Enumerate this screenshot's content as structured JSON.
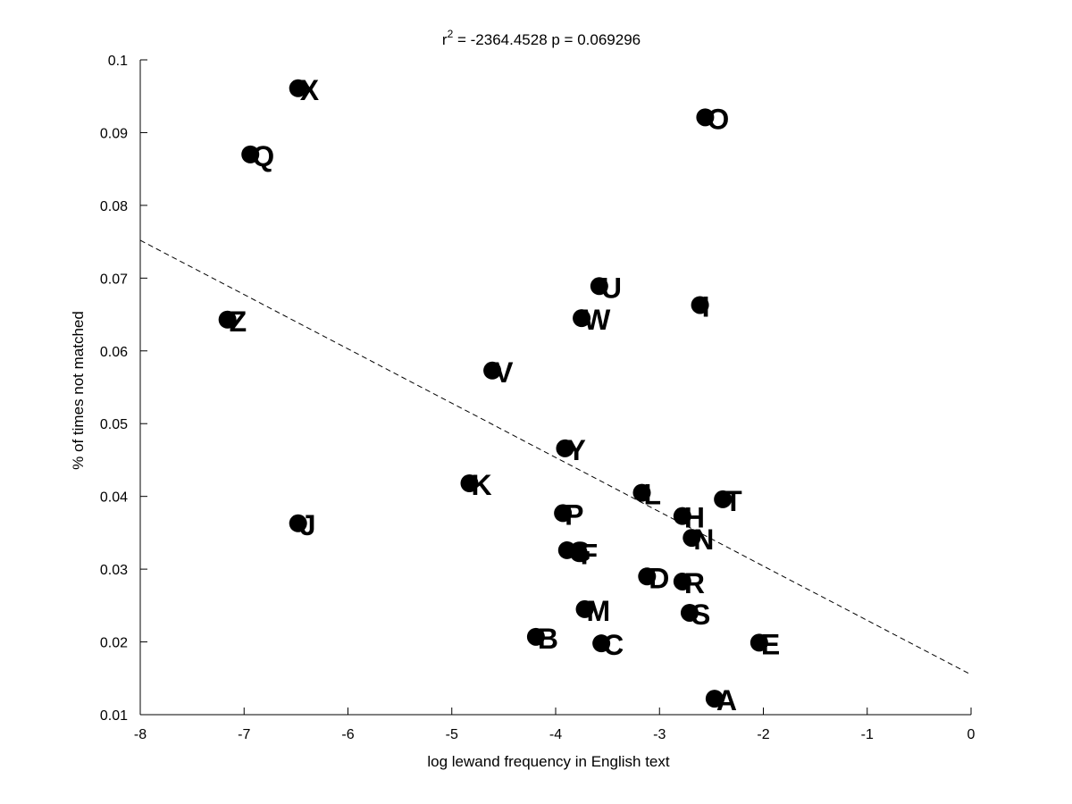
{
  "chart_data": {
    "type": "scatter",
    "title_main": "r",
    "title_sup": "2",
    "title_rest": " = -2364.4528 p = 0.069296",
    "xlabel": "log lewand frequency in English text",
    "ylabel": "% of times not matched",
    "xlim": [
      -8,
      0
    ],
    "ylim": [
      0.01,
      0.1
    ],
    "xticks": [
      -8,
      -7,
      -6,
      -5,
      -4,
      -3,
      -2,
      -1,
      0
    ],
    "xtick_labels": [
      "-8",
      "-7",
      "-6",
      "-5",
      "-4",
      "-3",
      "-2",
      "-1",
      "0"
    ],
    "yticks": [
      0.01,
      0.02,
      0.03,
      0.04,
      0.05,
      0.06,
      0.07,
      0.08,
      0.09,
      0.1
    ],
    "ytick_labels": [
      "0.01",
      "0.02",
      "0.03",
      "0.04",
      "0.05",
      "0.06",
      "0.07",
      "0.08",
      "0.09",
      "0.1"
    ],
    "grid": false,
    "points": [
      {
        "label": "X",
        "x": -6.48,
        "y": 0.0961
      },
      {
        "label": "Q",
        "x": -6.94,
        "y": 0.087
      },
      {
        "label": "O",
        "x": -2.56,
        "y": 0.0921
      },
      {
        "label": "U",
        "x": -3.58,
        "y": 0.0689
      },
      {
        "label": "I",
        "x": -2.61,
        "y": 0.0663
      },
      {
        "label": "W",
        "x": -3.75,
        "y": 0.0645
      },
      {
        "label": "Z",
        "x": -7.16,
        "y": 0.0643
      },
      {
        "label": "V",
        "x": -4.61,
        "y": 0.0573
      },
      {
        "label": "Y",
        "x": -3.91,
        "y": 0.0466
      },
      {
        "label": "K",
        "x": -4.83,
        "y": 0.0418
      },
      {
        "label": "L",
        "x": -3.17,
        "y": 0.0405
      },
      {
        "label": "T",
        "x": -2.39,
        "y": 0.0396
      },
      {
        "label": "H",
        "x": -2.78,
        "y": 0.0373
      },
      {
        "label": "P",
        "x": -3.93,
        "y": 0.0377
      },
      {
        "label": "J",
        "x": -6.48,
        "y": 0.0363
      },
      {
        "label": "N",
        "x": -2.69,
        "y": 0.0343
      },
      {
        "label": "G",
        "x": -3.89,
        "y": 0.0326
      },
      {
        "label": "F",
        "x": -3.78,
        "y": 0.0323
      },
      {
        "label": "D",
        "x": -3.12,
        "y": 0.029
      },
      {
        "label": "R",
        "x": -2.78,
        "y": 0.0283
      },
      {
        "label": "M",
        "x": -3.72,
        "y": 0.0245
      },
      {
        "label": "S",
        "x": -2.71,
        "y": 0.024
      },
      {
        "label": "B",
        "x": -4.19,
        "y": 0.0207
      },
      {
        "label": "C",
        "x": -3.56,
        "y": 0.0198
      },
      {
        "label": "E",
        "x": -2.04,
        "y": 0.0199
      },
      {
        "label": "A",
        "x": -2.47,
        "y": 0.0122
      }
    ],
    "fit_line": {
      "x": [
        -8,
        0
      ],
      "y": [
        0.0752,
        0.0155
      ],
      "style": "dashed"
    }
  }
}
